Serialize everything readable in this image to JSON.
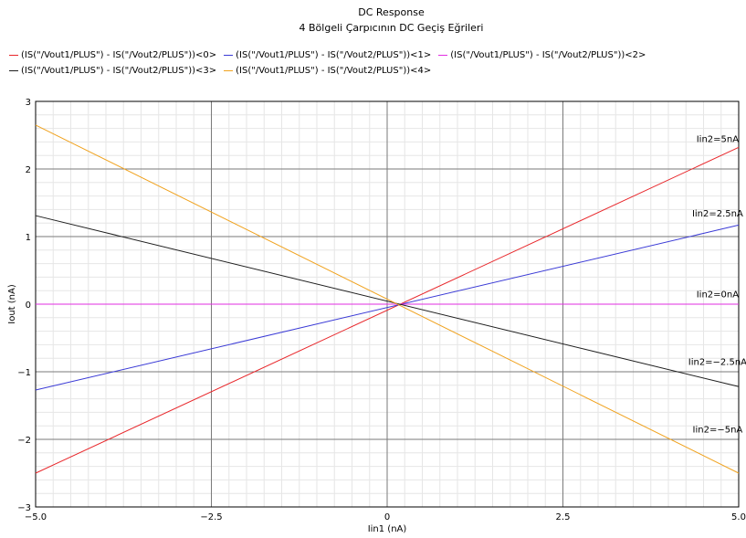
{
  "chart_data": {
    "type": "line",
    "title": "DC Response",
    "subtitle": "4 Bölgeli Çarpıcının DC Geçiş Eğrileri",
    "xlabel": "Iin1 (nA)",
    "ylabel": "Iout (nA)",
    "xlim": [
      -5.0,
      5.0
    ],
    "ylim": [
      -3,
      3
    ],
    "xticks": [
      "-5.0",
      "-2.5",
      "0",
      "2.5",
      "5.0"
    ],
    "yticks": [
      "-3",
      "-2",
      "-1",
      "0",
      "1",
      "2",
      "3"
    ],
    "grid": true,
    "legend_position": "top",
    "series": [
      {
        "name": "(IS(\"/Vout1/PLUS\") - IS(\"/Vout2/PLUS\"))<0>",
        "color": "#e8262a",
        "x": [
          -5.0,
          5.0
        ],
        "y": [
          -2.5,
          2.32
        ]
      },
      {
        "name": "(IS(\"/Vout1/PLUS\") - IS(\"/Vout2/PLUS\"))<1>",
        "color": "#3a3ad6",
        "x": [
          -5.0,
          5.0
        ],
        "y": [
          -1.27,
          1.17
        ]
      },
      {
        "name": "(IS(\"/Vout1/PLUS\") - IS(\"/Vout2/PLUS\"))<2>",
        "color": "#e22ee2",
        "x": [
          -5.0,
          5.0
        ],
        "y": [
          0.0,
          0.0
        ]
      },
      {
        "name": "(IS(\"/Vout1/PLUS\") - IS(\"/Vout2/PLUS\"))<3>",
        "color": "#1e1e1e",
        "x": [
          -5.0,
          5.0
        ],
        "y": [
          1.31,
          -1.22
        ]
      },
      {
        "name": "(IS(\"/Vout1/PLUS\") - IS(\"/Vout2/PLUS\"))<4>",
        "color": "#f0a21e",
        "x": [
          -5.0,
          5.0
        ],
        "y": [
          2.65,
          -2.5
        ]
      }
    ],
    "annotations": [
      {
        "text": "Iin2=5nA",
        "x": 4.7,
        "y": 2.4
      },
      {
        "text": "Iin2=2.5nA",
        "x": 4.7,
        "y": 1.3
      },
      {
        "text": "Iin2=0nA",
        "x": 4.7,
        "y": 0.1
      },
      {
        "text": "Iin2=-2.5nA",
        "x": 4.7,
        "y": -0.9
      },
      {
        "text": "Iin2=-5nA",
        "x": 4.7,
        "y": -1.9
      }
    ]
  }
}
